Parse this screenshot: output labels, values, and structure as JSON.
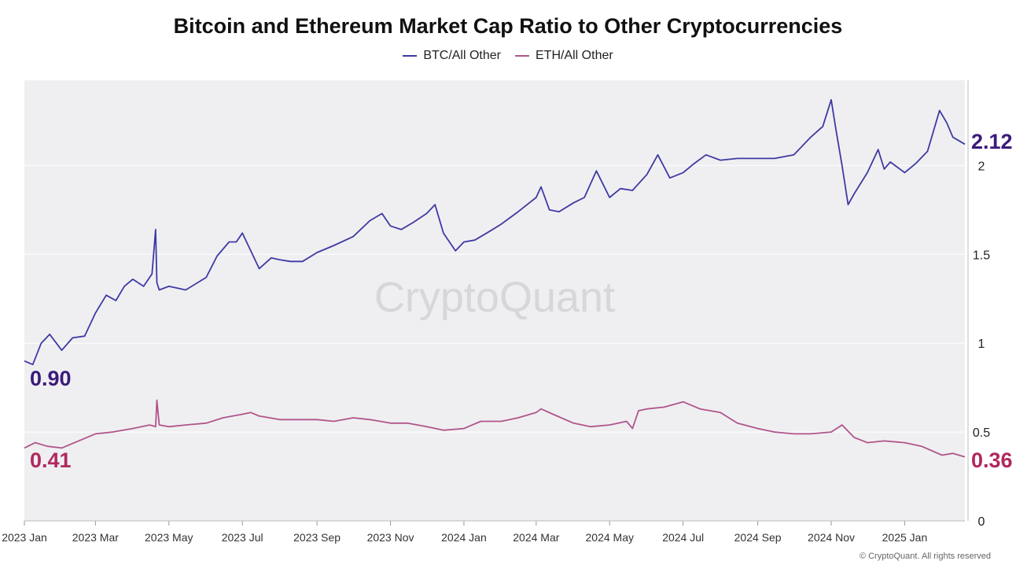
{
  "chart_data": {
    "type": "line",
    "title": "Bitcoin and Ethereum Market Cap Ratio to Other Cryptocurrencies",
    "x_ticks": [
      "2023 Jan",
      "2023 Mar",
      "2023 May",
      "2023 Jul",
      "2023 Sep",
      "2023 Nov",
      "2024 Jan",
      "2024 Mar",
      "2024 May",
      "2024 Jul",
      "2024 Sep",
      "2024 Nov",
      "2025 Jan"
    ],
    "y_ticks": [
      "0",
      "0.5",
      "1",
      "1.5",
      "2"
    ],
    "ylim": [
      0,
      2.48
    ],
    "grid": true,
    "legend_position": "top-center",
    "watermark": "CryptoQuant",
    "series": [
      {
        "name": "BTC/All Other",
        "color": "#3f3aa2",
        "x": [
          "2023-01-01",
          "2023-01-08",
          "2023-01-15",
          "2023-01-22",
          "2023-02-01",
          "2023-02-10",
          "2023-02-20",
          "2023-03-01",
          "2023-03-10",
          "2023-03-18",
          "2023-03-25",
          "2023-04-01",
          "2023-04-10",
          "2023-04-17",
          "2023-04-20",
          "2023-04-21",
          "2023-04-23",
          "2023-05-01",
          "2023-05-15",
          "2023-06-01",
          "2023-06-10",
          "2023-06-20",
          "2023-06-26",
          "2023-07-01",
          "2023-07-08",
          "2023-07-15",
          "2023-07-25",
          "2023-08-01",
          "2023-08-10",
          "2023-08-20",
          "2023-09-01",
          "2023-09-15",
          "2023-10-01",
          "2023-10-15",
          "2023-10-25",
          "2023-11-01",
          "2023-11-10",
          "2023-11-20",
          "2023-12-01",
          "2023-12-08",
          "2023-12-15",
          "2023-12-25",
          "2024-01-01",
          "2024-01-10",
          "2024-01-20",
          "2024-02-01",
          "2024-02-15",
          "2024-03-01",
          "2024-03-05",
          "2024-03-12",
          "2024-03-20",
          "2024-04-01",
          "2024-04-10",
          "2024-04-20",
          "2024-05-01",
          "2024-05-10",
          "2024-05-20",
          "2024-06-01",
          "2024-06-10",
          "2024-06-20",
          "2024-07-01",
          "2024-07-10",
          "2024-07-20",
          "2024-08-01",
          "2024-08-15",
          "2024-09-01",
          "2024-09-15",
          "2024-10-01",
          "2024-10-15",
          "2024-10-25",
          "2024-11-01",
          "2024-11-05",
          "2024-11-10",
          "2024-11-15",
          "2024-11-20",
          "2024-12-01",
          "2024-12-10",
          "2024-12-15",
          "2024-12-20",
          "2025-01-01",
          "2025-01-10",
          "2025-01-20",
          "2025-01-30",
          "2025-02-05",
          "2025-02-10",
          "2025-02-15",
          "2025-02-20"
        ],
        "values": [
          0.9,
          0.88,
          1.0,
          1.05,
          0.96,
          1.03,
          1.04,
          1.17,
          1.27,
          1.24,
          1.32,
          1.36,
          1.32,
          1.39,
          1.64,
          1.34,
          1.3,
          1.32,
          1.3,
          1.37,
          1.49,
          1.57,
          1.57,
          1.62,
          1.52,
          1.42,
          1.48,
          1.47,
          1.46,
          1.46,
          1.51,
          1.55,
          1.6,
          1.69,
          1.73,
          1.66,
          1.64,
          1.68,
          1.73,
          1.78,
          1.62,
          1.52,
          1.57,
          1.58,
          1.62,
          1.67,
          1.74,
          1.82,
          1.88,
          1.75,
          1.74,
          1.79,
          1.82,
          1.97,
          1.82,
          1.87,
          1.86,
          1.95,
          2.06,
          1.93,
          1.96,
          2.01,
          2.06,
          2.03,
          2.04,
          2.04,
          2.04,
          2.06,
          2.16,
          2.22,
          2.37,
          2.2,
          2.0,
          1.78,
          1.84,
          1.96,
          2.09,
          1.98,
          2.02,
          1.96,
          2.01,
          2.08,
          2.31,
          2.24,
          2.16,
          2.14,
          2.12
        ]
      },
      {
        "name": "ETH/All Other",
        "color": "#b0558a",
        "x": [
          "2023-01-01",
          "2023-01-10",
          "2023-01-20",
          "2023-02-01",
          "2023-02-15",
          "2023-03-01",
          "2023-03-15",
          "2023-04-01",
          "2023-04-15",
          "2023-04-20",
          "2023-04-21",
          "2023-04-23",
          "2023-05-01",
          "2023-05-15",
          "2023-06-01",
          "2023-06-15",
          "2023-07-01",
          "2023-07-08",
          "2023-07-15",
          "2023-08-01",
          "2023-08-15",
          "2023-09-01",
          "2023-09-15",
          "2023-10-01",
          "2023-10-15",
          "2023-11-01",
          "2023-11-15",
          "2023-12-01",
          "2023-12-15",
          "2024-01-01",
          "2024-01-15",
          "2024-02-01",
          "2024-02-15",
          "2024-03-01",
          "2024-03-05",
          "2024-03-15",
          "2024-04-01",
          "2024-04-15",
          "2024-05-01",
          "2024-05-15",
          "2024-05-20",
          "2024-05-25",
          "2024-06-01",
          "2024-06-15",
          "2024-07-01",
          "2024-07-15",
          "2024-08-01",
          "2024-08-15",
          "2024-09-01",
          "2024-09-15",
          "2024-10-01",
          "2024-10-15",
          "2024-11-01",
          "2024-11-10",
          "2024-11-20",
          "2024-12-01",
          "2024-12-15",
          "2025-01-01",
          "2025-01-15",
          "2025-02-01",
          "2025-02-10",
          "2025-02-20"
        ],
        "values": [
          0.41,
          0.44,
          0.42,
          0.41,
          0.45,
          0.49,
          0.5,
          0.52,
          0.54,
          0.53,
          0.68,
          0.54,
          0.53,
          0.54,
          0.55,
          0.58,
          0.6,
          0.61,
          0.59,
          0.57,
          0.57,
          0.57,
          0.56,
          0.58,
          0.57,
          0.55,
          0.55,
          0.53,
          0.51,
          0.52,
          0.56,
          0.56,
          0.58,
          0.61,
          0.63,
          0.6,
          0.55,
          0.53,
          0.54,
          0.56,
          0.52,
          0.62,
          0.63,
          0.64,
          0.67,
          0.63,
          0.61,
          0.55,
          0.52,
          0.5,
          0.49,
          0.49,
          0.5,
          0.54,
          0.47,
          0.44,
          0.45,
          0.44,
          0.42,
          0.37,
          0.38,
          0.36
        ]
      }
    ],
    "annotations": {
      "btc_start": "0.90",
      "btc_end": "2.12",
      "eth_start": "0.41",
      "eth_end": "0.36"
    },
    "date_range": [
      "2023-01-01",
      "2025-02-20"
    ]
  },
  "colors": {
    "plot_background": "#efeff2",
    "grid": "#ffffff",
    "btc_label": "#3b1a7a",
    "eth_label": "#b0285e"
  },
  "footer": "© CryptoQuant. All rights reserved"
}
